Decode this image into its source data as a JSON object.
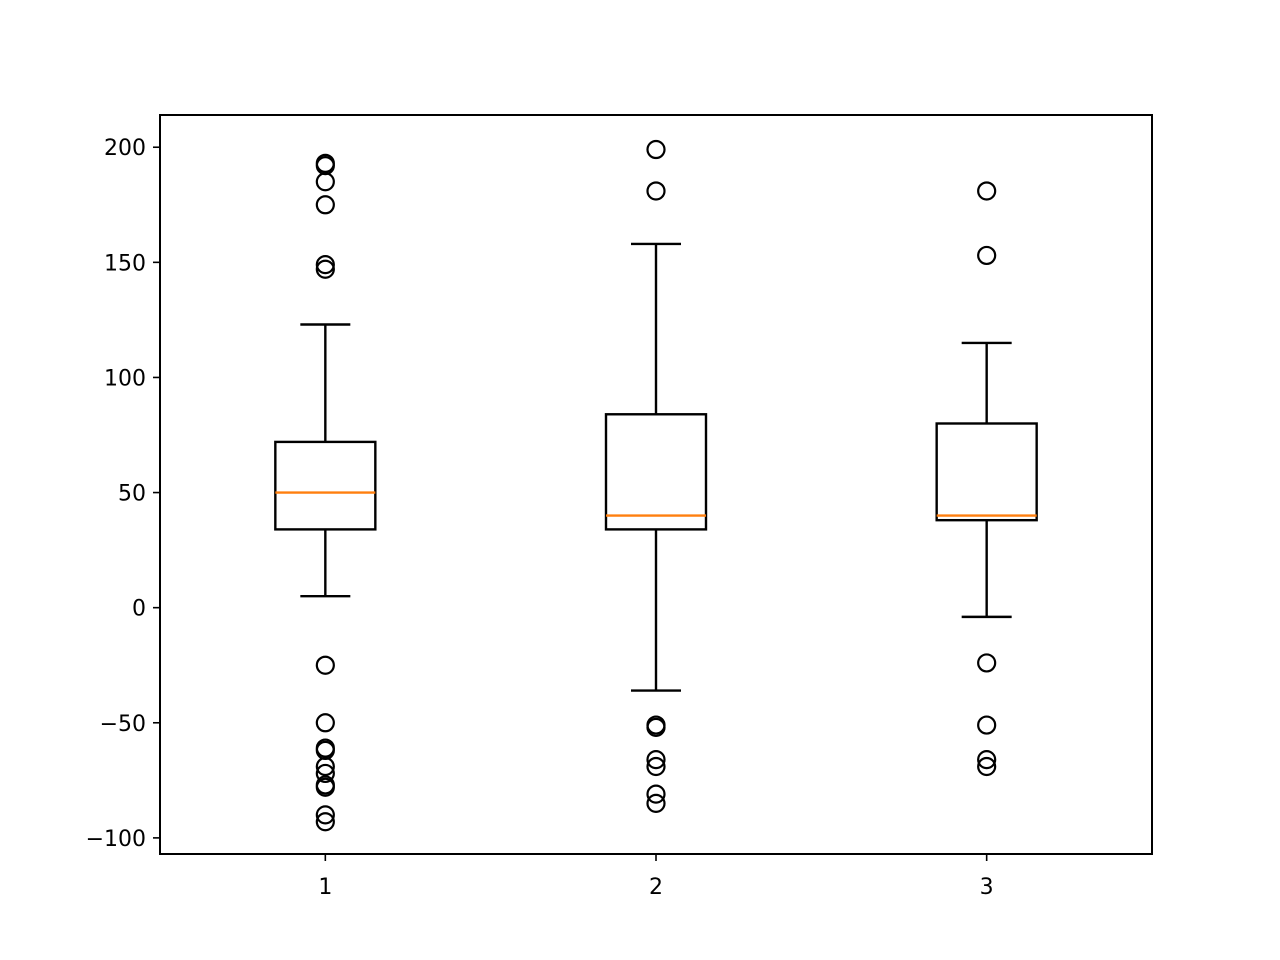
{
  "chart_data": {
    "type": "boxplot",
    "title": "",
    "xlabel": "",
    "ylabel": "",
    "categories": [
      "1",
      "2",
      "3"
    ],
    "ylim": [
      -107,
      214
    ],
    "xlim": [
      0.5,
      3.5
    ],
    "yticks": [
      {
        "value": 200,
        "label": "200"
      },
      {
        "value": 150,
        "label": "150"
      },
      {
        "value": 100,
        "label": "100"
      },
      {
        "value": 50,
        "label": "50"
      },
      {
        "value": 0,
        "label": "0"
      },
      {
        "value": -50,
        "label": "−50"
      },
      {
        "value": -100,
        "label": "−100"
      }
    ],
    "grid": false,
    "box_color": "#000000",
    "median_color": "#ff7f0e",
    "boxes": [
      {
        "category": "1",
        "whisker_low": 5,
        "q1": 34,
        "median": 50,
        "q3": 72,
        "whisker_high": 123,
        "fliers": [
          193,
          192,
          185,
          175,
          149,
          147,
          -25,
          -50,
          -61,
          -62,
          -69,
          -72,
          -77,
          -78,
          -90,
          -93
        ]
      },
      {
        "category": "2",
        "whisker_low": -36,
        "q1": 34,
        "median": 40,
        "q3": 84,
        "whisker_high": 158,
        "fliers": [
          199,
          181,
          -51,
          -52,
          -66,
          -69,
          -81,
          -85
        ]
      },
      {
        "category": "3",
        "whisker_low": -4,
        "q1": 38,
        "median": 40,
        "q3": 80,
        "whisker_high": 115,
        "fliers": [
          181,
          153,
          -24,
          -51,
          -66,
          -69
        ]
      }
    ]
  }
}
